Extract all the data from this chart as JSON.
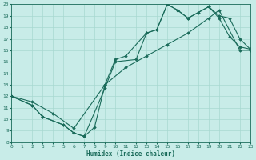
{
  "xlabel": "Humidex (Indice chaleur)",
  "bg_color": "#c8ece8",
  "grid_color": "#a8d8d0",
  "line_color": "#1a6b5a",
  "xlim": [
    0,
    23
  ],
  "ylim": [
    8,
    20
  ],
  "xticks": [
    0,
    1,
    2,
    3,
    4,
    5,
    6,
    7,
    8,
    9,
    10,
    11,
    12,
    13,
    14,
    15,
    16,
    17,
    18,
    19,
    20,
    21,
    22,
    23
  ],
  "yticks": [
    8,
    9,
    10,
    11,
    12,
    13,
    14,
    15,
    16,
    17,
    18,
    19,
    20
  ],
  "line1_x": [
    0,
    2,
    3,
    5,
    6,
    7,
    8,
    9,
    10,
    11,
    13,
    14,
    15,
    16,
    17,
    18,
    19,
    20,
    21,
    22,
    23
  ],
  "line1_y": [
    12,
    11.2,
    10.2,
    9.5,
    8.8,
    8.5,
    9.3,
    13.0,
    15.2,
    15.5,
    17.5,
    17.8,
    20.0,
    19.5,
    18.8,
    19.3,
    19.8,
    18.8,
    17.2,
    16.3,
    16.1
  ],
  "line2_x": [
    0,
    2,
    3,
    5,
    6,
    7,
    9,
    10,
    12,
    13,
    14,
    15,
    16,
    17,
    19,
    20,
    21,
    22,
    23
  ],
  "line2_y": [
    12,
    11.2,
    10.2,
    9.5,
    8.8,
    8.5,
    12.7,
    15.0,
    15.2,
    17.5,
    17.8,
    20.0,
    19.5,
    18.8,
    19.8,
    19.0,
    18.8,
    17.0,
    16.1
  ],
  "line3_x": [
    0,
    2,
    4,
    6,
    9,
    11,
    13,
    15,
    17,
    19,
    20,
    22,
    23
  ],
  "line3_y": [
    12,
    11.5,
    10.5,
    9.2,
    13.0,
    14.5,
    15.5,
    16.5,
    17.5,
    18.8,
    19.5,
    16.0,
    16.0
  ]
}
